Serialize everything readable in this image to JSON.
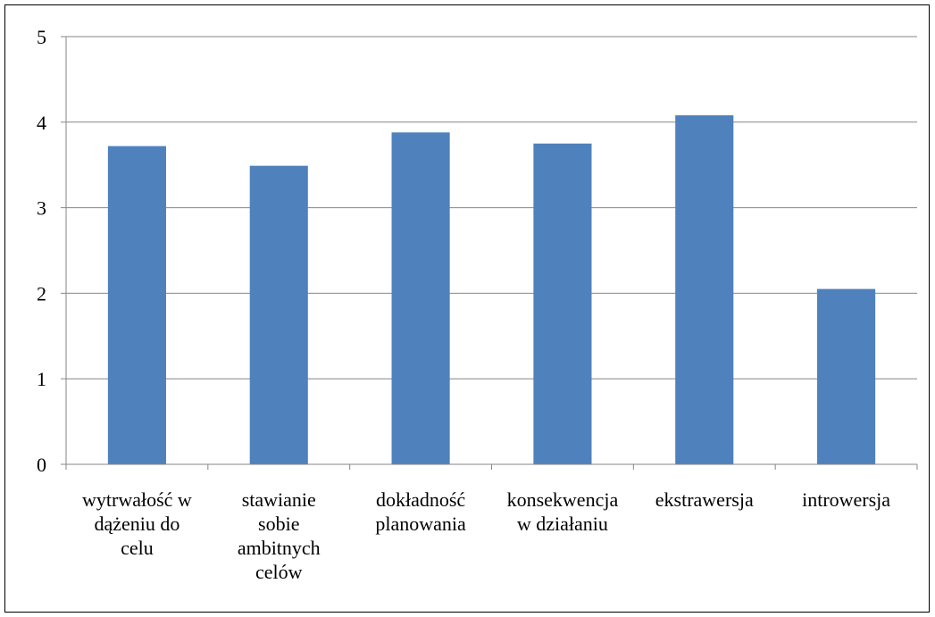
{
  "chart_data": {
    "type": "bar",
    "categories": [
      [
        "wytrwałość w",
        "dążeniu do",
        "celu"
      ],
      [
        "stawianie",
        "sobie",
        "ambitnych",
        "celów"
      ],
      [
        "dokładność",
        "planowania"
      ],
      [
        "konsekwencja",
        "w działaniu"
      ],
      [
        "ekstrawersja"
      ],
      [
        "introwersja"
      ]
    ],
    "values": [
      3.72,
      3.49,
      3.88,
      3.75,
      4.08,
      2.05
    ],
    "ylim": [
      0,
      5
    ],
    "yticks": [
      "0",
      "1",
      "2",
      "3",
      "4",
      "5"
    ],
    "grid": true,
    "legend": "none",
    "title": "",
    "xlabel": "",
    "ylabel": "",
    "colors": {
      "bar": "#4F81BD",
      "grid": "#868686",
      "axis": "#868686",
      "text": "#000000"
    }
  }
}
